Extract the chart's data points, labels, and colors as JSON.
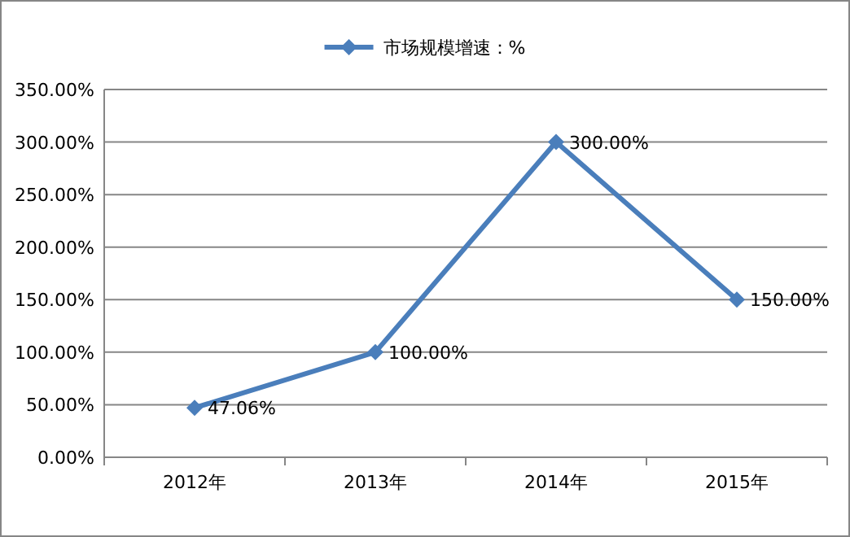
{
  "chart_data": {
    "type": "line",
    "categories": [
      "2012年",
      "2013年",
      "2014年",
      "2015年"
    ],
    "series": [
      {
        "name": "市场规模增速：%",
        "color": "#4a7ebb",
        "values": [
          47.06,
          100,
          300,
          150
        ],
        "value_labels": [
          "47.06%",
          "100.00%",
          "300.00%",
          "150.00%"
        ]
      }
    ],
    "ylim": [
      0,
      350
    ],
    "yticks": [
      {
        "value": 0,
        "label": "0.00%"
      },
      {
        "value": 50,
        "label": "50.00%"
      },
      {
        "value": 100,
        "label": "100.00%"
      },
      {
        "value": 150,
        "label": "150.00%"
      },
      {
        "value": 200,
        "label": "200.00%"
      },
      {
        "value": 250,
        "label": "250.00%"
      },
      {
        "value": 300,
        "label": "300.00%"
      },
      {
        "value": 350,
        "label": "350.00%"
      }
    ],
    "grid": "y",
    "legend": "top",
    "marker": "diamond",
    "line_style": "solid"
  }
}
